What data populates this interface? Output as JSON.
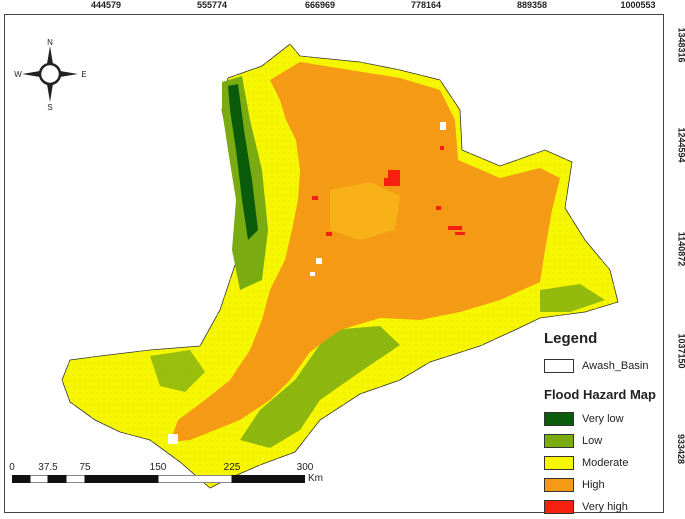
{
  "top_ticks": [
    "444579",
    "555774",
    "666969",
    "778164",
    "889358",
    "1000553"
  ],
  "right_ticks": [
    "1348316",
    "1244594",
    "1140872",
    "1037150",
    "933428"
  ],
  "compass": {
    "n": "N",
    "s": "S",
    "e": "E",
    "w": "W"
  },
  "legend": {
    "title": "Legend",
    "basin_label": "Awash_Basin",
    "subtitle": "Flood Hazard Map",
    "classes": [
      {
        "label": "Very low",
        "color": "#0a5c0a"
      },
      {
        "label": "Low",
        "color": "#7aab10"
      },
      {
        "label": "Moderate",
        "color": "#f6f600"
      },
      {
        "label": "High",
        "color": "#f59a14"
      },
      {
        "label": "Very high",
        "color": "#f52010"
      }
    ]
  },
  "scale": {
    "labels": [
      "0",
      "37.5",
      "75",
      "150",
      "225",
      "300"
    ],
    "unit": "Km"
  }
}
